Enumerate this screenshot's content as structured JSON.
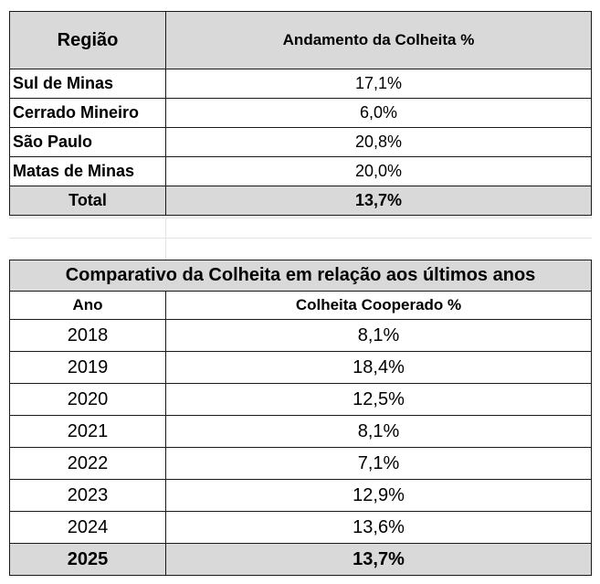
{
  "table1": {
    "headers": [
      "Região",
      "Andamento da Colheita %"
    ],
    "rows": [
      {
        "region": "Sul de Minas",
        "value": "17,1%"
      },
      {
        "region": "Cerrado Mineiro",
        "value": "6,0%"
      },
      {
        "region": "São Paulo",
        "value": "20,8%"
      },
      {
        "region": "Matas de Minas",
        "value": "20,0%"
      }
    ],
    "total": {
      "label": "Total",
      "value": "13,7%"
    }
  },
  "table2": {
    "title": "Comparativo da Colheita em relação aos últimos anos",
    "headers": [
      "Ano",
      "Colheita Cooperado %"
    ],
    "rows": [
      {
        "year": "2018",
        "value": "8,1%"
      },
      {
        "year": "2019",
        "value": "18,4%"
      },
      {
        "year": "2020",
        "value": "12,5%"
      },
      {
        "year": "2021",
        "value": "8,1%"
      },
      {
        "year": "2022",
        "value": "7,1%"
      },
      {
        "year": "2023",
        "value": "12,9%"
      },
      {
        "year": "2024",
        "value": "13,6%"
      }
    ],
    "total": {
      "year": "2025",
      "value": "13,7%"
    }
  }
}
